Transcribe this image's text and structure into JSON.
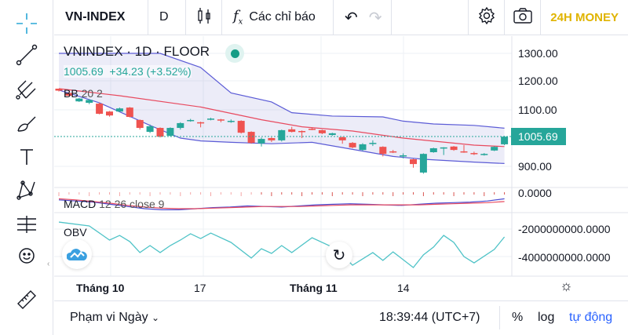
{
  "toolbar": {
    "symbol": "VN-INDEX",
    "interval": "D",
    "indicators_label": "Các chỉ báo",
    "brand": "24H MONEY"
  },
  "legend": {
    "title": "VNINDEX · 1D · FLOOR",
    "last": "1005.69",
    "change": "+34.23 (+3.52%)",
    "bb": "BB",
    "bb_params": "20 2",
    "macd": "MACD",
    "macd_params": "12 26 close 9",
    "obv": "OBV"
  },
  "price_axis": {
    "ticks": [
      "1300.00",
      "1200.00",
      "1100.00",
      "900.00"
    ],
    "last_label": "1005.69"
  },
  "macd_axis": {
    "ticks": [
      "0.0000"
    ]
  },
  "obv_axis": {
    "ticks": [
      "-2000000000.0000",
      "-4000000000.0000"
    ]
  },
  "time_axis": {
    "labels": [
      "Tháng 10",
      "17",
      "Tháng 11",
      "14"
    ]
  },
  "bottom": {
    "range": "Phạm vi Ngày",
    "time": "18:39:44 (UTC+7)",
    "percent": "%",
    "log": "log",
    "auto": "tự động"
  },
  "colors": {
    "up": "#26a69a",
    "down": "#ef5350",
    "brand": "#e0b400",
    "accent": "#2962ff",
    "bb_band": "#5b5bd6",
    "bb_mid": "#e84a5f",
    "obv": "#4fc3c7"
  },
  "chart_data": {
    "type": "candlestick",
    "ylim": [
      850,
      1330
    ],
    "candles": [
      [
        1175,
        1175,
        1165,
        1168
      ],
      [
        1160,
        1162,
        1148,
        1150
      ],
      [
        1130,
        1142,
        1128,
        1140
      ],
      [
        1125,
        1137,
        1120,
        1135
      ],
      [
        1122,
        1126,
        1084,
        1086
      ],
      [
        1094,
        1096,
        1076,
        1080
      ],
      [
        1094,
        1108,
        1092,
        1105
      ],
      [
        1108,
        1110,
        1073,
        1075
      ],
      [
        1064,
        1066,
        1030,
        1036
      ],
      [
        1022,
        1048,
        1018,
        1042
      ],
      [
        1036,
        1038,
        1002,
        1005
      ],
      [
        1008,
        1038,
        1006,
        1036
      ],
      [
        1036,
        1056,
        1030,
        1053
      ],
      [
        1061,
        1068,
        1058,
        1064
      ],
      [
        1056,
        1058,
        1038,
        1055
      ],
      [
        1066,
        1072,
        1063,
        1069
      ],
      [
        1066,
        1068,
        1056,
        1062
      ],
      [
        1060,
        1066,
        1054,
        1061
      ],
      [
        1061,
        1063,
        1016,
        1019
      ],
      [
        1022,
        1024,
        980,
        983
      ],
      [
        981,
        1002,
        970,
        997
      ],
      [
        1000,
        1003,
        986,
        992
      ],
      [
        992,
        1030,
        988,
        1028
      ],
      [
        1031,
        1040,
        1020,
        1022
      ],
      [
        1025,
        1027,
        1000,
        1022
      ],
      [
        1033,
        1038,
        1028,
        1031
      ],
      [
        1028,
        1030,
        1014,
        1017
      ],
      [
        1011,
        1019,
        1008,
        1017
      ],
      [
        1003,
        1005,
        980,
        992
      ],
      [
        983,
        986,
        964,
        967
      ],
      [
        958,
        982,
        955,
        978
      ],
      [
        981,
        992,
        972,
        983
      ],
      [
        969,
        971,
        935,
        944
      ],
      [
        953,
        958,
        947,
        950
      ],
      [
        936,
        946,
        928,
        939
      ],
      [
        925,
        927,
        895,
        908
      ],
      [
        878,
        946,
        874,
        944
      ],
      [
        950,
        966,
        948,
        964
      ],
      [
        964,
        968,
        940,
        967
      ],
      [
        970,
        972,
        955,
        958
      ],
      [
        953,
        975,
        948,
        950
      ],
      [
        947,
        952,
        940,
        944
      ],
      [
        942,
        947,
        938,
        944
      ],
      [
        956,
        971,
        954,
        969
      ],
      [
        978,
        1008,
        975,
        1005
      ]
    ],
    "bb_upper": [
      [
        0,
        1300
      ],
      [
        10,
        1300
      ],
      [
        14,
        1250
      ],
      [
        17,
        1160
      ],
      [
        21,
        1128
      ],
      [
        23,
        1090
      ],
      [
        27,
        1078
      ],
      [
        32,
        1075
      ],
      [
        34,
        1060
      ],
      [
        37,
        1050
      ],
      [
        41,
        1045
      ],
      [
        44,
        1035
      ]
    ],
    "bb_mid": [
      [
        0,
        1175
      ],
      [
        6,
        1150
      ],
      [
        14,
        1110
      ],
      [
        20,
        1065
      ],
      [
        24,
        1040
      ],
      [
        29,
        1025
      ],
      [
        34,
        1000
      ],
      [
        41,
        975
      ],
      [
        44,
        970
      ]
    ],
    "bb_lower": [
      [
        0,
        1170
      ],
      [
        4,
        1125
      ],
      [
        9,
        1045
      ],
      [
        12,
        1000
      ],
      [
        14,
        990
      ],
      [
        17,
        985
      ],
      [
        21,
        980
      ],
      [
        25,
        985
      ],
      [
        29,
        960
      ],
      [
        33,
        935
      ],
      [
        36,
        925
      ],
      [
        41,
        915
      ],
      [
        44,
        910
      ]
    ],
    "macd": [
      -14,
      -16,
      -18,
      -22,
      -26,
      -30,
      -32,
      -32,
      -30,
      -28,
      -27,
      -25,
      -26,
      -27,
      -25,
      -23,
      -22,
      -21,
      -22,
      -23,
      -24,
      -22,
      -20,
      -19,
      -18,
      -16,
      -12
    ],
    "macd_signal": [
      -12,
      -14,
      -17,
      -20,
      -24,
      -27,
      -29,
      -30,
      -30,
      -29,
      -28,
      -27,
      -26,
      -26,
      -26,
      -25,
      -24,
      -23,
      -23,
      -23,
      -23,
      -23,
      -22,
      -21,
      -20,
      -19,
      -17
    ],
    "obv_billion": [
      [
        0,
        -1.49
      ],
      [
        3,
        -1.77
      ],
      [
        5,
        -2.8
      ],
      [
        6,
        -2.46
      ],
      [
        7,
        -2.91
      ],
      [
        8,
        -3.71
      ],
      [
        9,
        -3.2
      ],
      [
        10,
        -3.71
      ],
      [
        11,
        -3.2
      ],
      [
        12,
        -2.8
      ],
      [
        13,
        -2.34
      ],
      [
        14,
        -2.69
      ],
      [
        15,
        -2.29
      ],
      [
        17,
        -2.97
      ],
      [
        19,
        -4.11
      ],
      [
        20,
        -3.43
      ],
      [
        21,
        -3.77
      ],
      [
        22,
        -3.2
      ],
      [
        23,
        -3.71
      ],
      [
        25,
        -2.63
      ],
      [
        27,
        -3.31
      ],
      [
        28,
        -3.88
      ],
      [
        29,
        -4.63
      ],
      [
        31,
        -3.71
      ],
      [
        32,
        -4.28
      ],
      [
        33,
        -3.66
      ],
      [
        35,
        -4.8
      ],
      [
        36,
        -3.88
      ],
      [
        37,
        -3.31
      ],
      [
        38,
        -2.46
      ],
      [
        39,
        -2.97
      ],
      [
        40,
        -4.0
      ],
      [
        41,
        -4.46
      ],
      [
        43,
        -3.48
      ],
      [
        44,
        -2.57
      ]
    ]
  }
}
